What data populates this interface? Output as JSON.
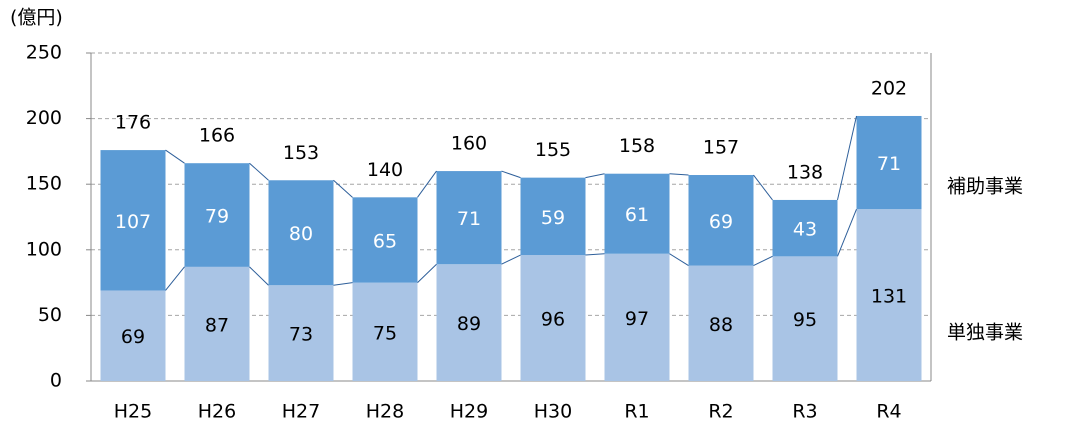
{
  "chart_data": {
    "type": "stacked_bar",
    "unit_label": "(億円)",
    "categories": [
      "H25",
      "H26",
      "H27",
      "H28",
      "H29",
      "H30",
      "R1",
      "R2",
      "R3",
      "R4"
    ],
    "series": [
      {
        "name": "単独事業",
        "color": "#a9c4e5",
        "values": [
          69,
          87,
          73,
          75,
          89,
          96,
          97,
          88,
          95,
          131
        ]
      },
      {
        "name": "補助事業",
        "color": "#5b9bd5",
        "values": [
          107,
          79,
          80,
          65,
          71,
          59,
          61,
          69,
          43,
          71
        ]
      }
    ],
    "totals": [
      176,
      166,
      153,
      140,
      160,
      155,
      158,
      157,
      138,
      202
    ],
    "ylim": [
      0,
      250
    ],
    "yticks": [
      0,
      50,
      100,
      150,
      200,
      250
    ],
    "grid": true
  }
}
